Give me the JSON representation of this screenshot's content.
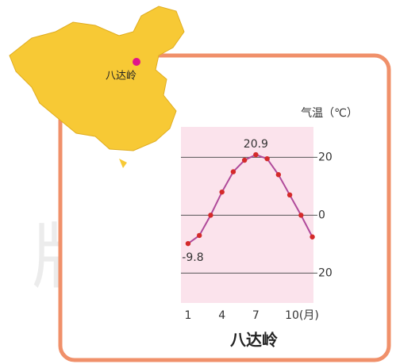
{
  "chart_data": {
    "type": "line",
    "title": "八达岭",
    "y_axis_label": "气温（℃）",
    "map_label": "八达岭",
    "watermark": "版社",
    "x": [
      1,
      2,
      3,
      4,
      5,
      6,
      7,
      8,
      9,
      10,
      11,
      12
    ],
    "xlim": [
      0.37,
      12.1
    ],
    "xticks": [
      1,
      4,
      7,
      {
        "value": 10,
        "label": "10(月)"
      }
    ],
    "ylim": [
      -30.3,
      30.5
    ],
    "yticks": [
      {
        "value": -20,
        "label": "20"
      },
      0,
      20
    ],
    "grid": true,
    "series": [
      {
        "name": "气温",
        "color": "#b04a9a",
        "marker_color": "#d42a2a",
        "values": [
          -9.8,
          -7,
          0,
          8,
          15,
          19,
          20.9,
          19.5,
          14,
          7,
          0,
          -7.5
        ],
        "value_labels": [
          "-9.8",
          null,
          null,
          null,
          null,
          null,
          "20.9",
          null,
          null,
          null,
          null,
          null
        ]
      }
    ]
  }
}
